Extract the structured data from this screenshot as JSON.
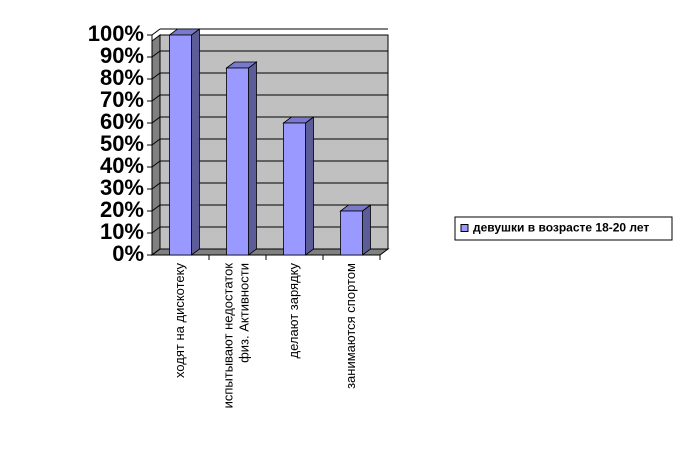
{
  "chart_data": {
    "type": "bar",
    "categories": [
      "ходят на дискотеку",
      "испытывают недостаток физ. Активности",
      "делают зарядку",
      "занимаются спортом"
    ],
    "series": [
      {
        "name": "девушки в возрасте 18-20 лет",
        "color": "#9999ff",
        "values": [
          100,
          85,
          60,
          20
        ]
      }
    ],
    "ylim": [
      0,
      100
    ],
    "yticks": [
      {
        "value": 0,
        "label": "0%"
      },
      {
        "value": 10,
        "label": "10%"
      },
      {
        "value": 20,
        "label": "20%"
      },
      {
        "value": 30,
        "label": "30%"
      },
      {
        "value": 40,
        "label": "40%"
      },
      {
        "value": 50,
        "label": "50%"
      },
      {
        "value": 60,
        "label": "60%"
      },
      {
        "value": 70,
        "label": "70%"
      },
      {
        "value": 80,
        "label": "80%"
      },
      {
        "value": 90,
        "label": "90%"
      },
      {
        "value": 100,
        "label": "100%"
      }
    ],
    "grid": true,
    "legend": "right"
  }
}
